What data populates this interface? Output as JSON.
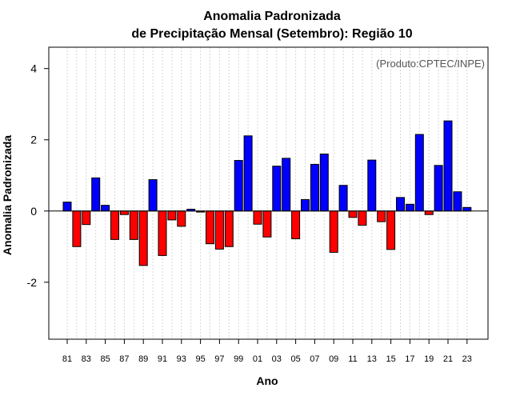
{
  "chart_data": {
    "type": "bar",
    "title_line1": "Anomalia Padronizada",
    "title_line2": "de Precipitação Mensal (Setembro): Região 10",
    "xlabel": "Ano",
    "ylabel": "Anomalia Padronizada",
    "annotation": "(Produto:CPTEC/INPE)",
    "ylim": [
      -3.6,
      4.6
    ],
    "yticks": [
      -2,
      0,
      2,
      4
    ],
    "ytick_labels": [
      "-2",
      "0",
      "2",
      "4"
    ],
    "grid": "vertical dotted lines at each year",
    "positive_color": "#0000ff",
    "negative_color": "#ff0000",
    "categories": [
      "81",
      "82",
      "83",
      "84",
      "85",
      "86",
      "87",
      "88",
      "89",
      "90",
      "91",
      "92",
      "93",
      "94",
      "95",
      "96",
      "97",
      "98",
      "99",
      "00",
      "01",
      "02",
      "03",
      "04",
      "05",
      "06",
      "07",
      "08",
      "09",
      "10",
      "11",
      "12",
      "13",
      "14",
      "15",
      "16",
      "17",
      "18",
      "19",
      "20",
      "21",
      "22",
      "23"
    ],
    "xtick_labels": [
      "81",
      "83",
      "85",
      "87",
      "89",
      "91",
      "93",
      "95",
      "97",
      "99",
      "01",
      "03",
      "05",
      "07",
      "09",
      "11",
      "13",
      "15",
      "17",
      "19",
      "21",
      "23"
    ],
    "values": [
      0.25,
      -1.0,
      -0.38,
      0.93,
      0.16,
      -0.8,
      -0.1,
      -0.8,
      -1.53,
      0.88,
      -1.25,
      -0.25,
      -0.43,
      0.05,
      -0.03,
      -0.92,
      -1.07,
      -1.0,
      1.42,
      2.11,
      -0.37,
      -0.73,
      1.26,
      1.48,
      -0.78,
      0.32,
      1.31,
      1.6,
      -1.16,
      0.72,
      -0.18,
      -0.4,
      1.43,
      -0.3,
      -1.08,
      0.38,
      0.19,
      2.15,
      -0.1,
      1.28,
      2.53,
      0.54,
      0.1
    ]
  }
}
